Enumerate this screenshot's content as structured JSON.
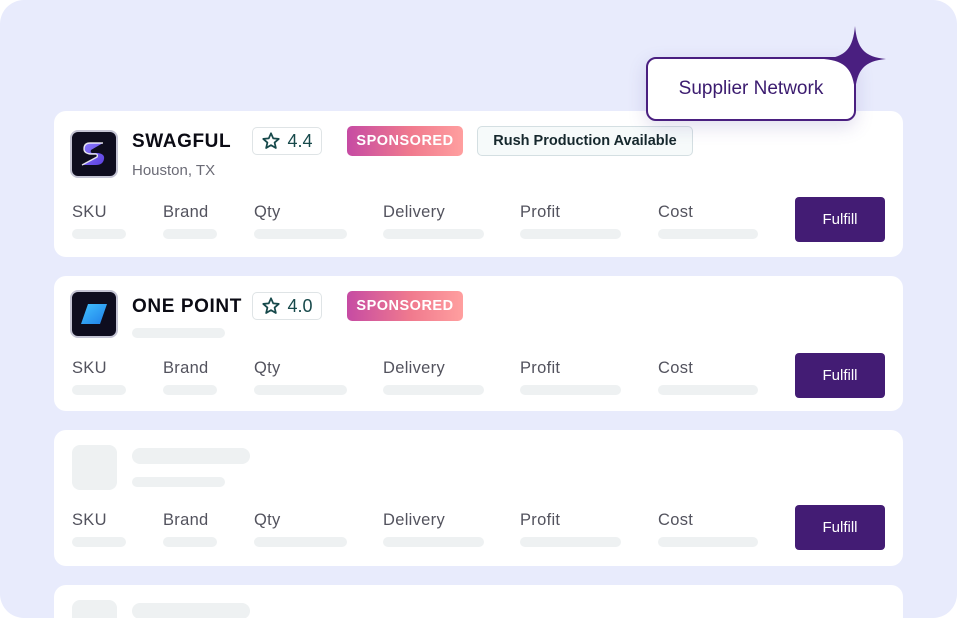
{
  "badge": {
    "label": "Supplier Network",
    "sparkle_icon": "sparkle-icon"
  },
  "columns": [
    "SKU",
    "Brand",
    "Qty",
    "Delivery",
    "Profit",
    "Cost"
  ],
  "suppliers": [
    {
      "name": "SWAGFUL",
      "location": "Houston, TX",
      "rating": "4.4",
      "sponsored": "SPONSORED",
      "tag": "Rush Production Available",
      "logo_icon": "swagful-logo-icon",
      "action": "Fulfill"
    },
    {
      "name": "ONE POINT",
      "rating": "4.0",
      "sponsored": "SPONSORED",
      "logo_icon": "one-point-logo-icon",
      "action": "Fulfill"
    },
    {
      "action": "Fulfill"
    }
  ],
  "colors": {
    "background": "#e8ebfc",
    "accent": "#431c74",
    "rating_text": "#17494b",
    "sponsored_gradient": [
      "#c64ba3",
      "#ff9f9f"
    ]
  }
}
